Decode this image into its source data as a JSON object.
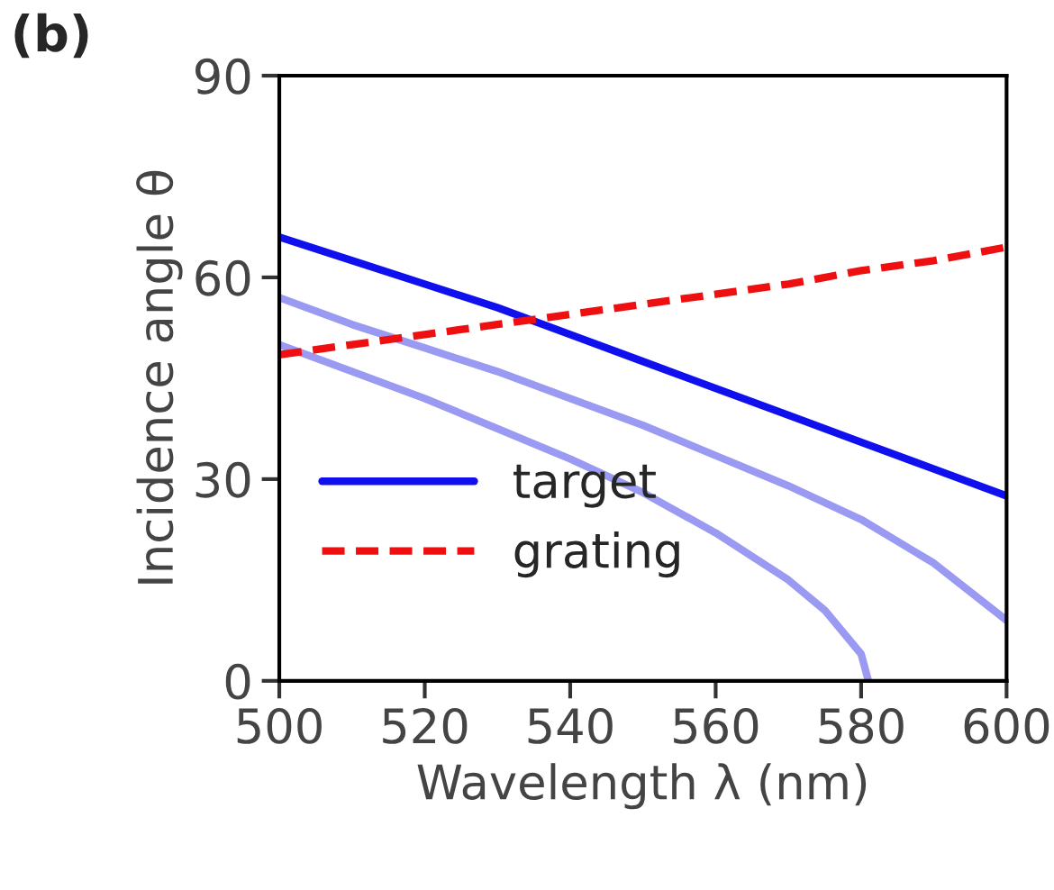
{
  "chart_data": {
    "type": "line",
    "annotations": [
      "(b)"
    ],
    "xlabel": "Wavelength λ (nm)",
    "ylabel": "Incidence angle θ",
    "xlim": [
      500,
      600
    ],
    "xticks": [
      500,
      520,
      540,
      560,
      580,
      600
    ],
    "ylim": [
      0,
      90
    ],
    "yticks": [
      0,
      30,
      60,
      90
    ],
    "grid": false,
    "legend": "bottom left",
    "series": [
      {
        "name": "target",
        "color": "#1010ee",
        "line_style": "solid",
        "x": [
          500,
          510,
          520,
          530,
          540,
          550,
          560,
          570,
          580,
          590,
          600
        ],
        "values": [
          66,
          62.5,
          59,
          55.5,
          51.5,
          47.5,
          43.5,
          39.5,
          35.5,
          31.5,
          27.5
        ]
      },
      {
        "name": "grating",
        "color": "#ee1010",
        "line_style": "dashed",
        "x": [
          500,
          510,
          520,
          530,
          540,
          550,
          560,
          570,
          580,
          590,
          600
        ],
        "values": [
          48.5,
          50,
          51.5,
          53,
          54.5,
          56,
          57.5,
          59,
          61,
          62.5,
          64.5
        ]
      },
      {
        "color": "#9a9af2",
        "line_style": "solid",
        "x": [
          500,
          510,
          520,
          530,
          540,
          550,
          560,
          570,
          580,
          590,
          600
        ],
        "values": [
          57,
          53,
          49.5,
          46,
          42,
          38,
          33.5,
          29,
          24,
          17.5,
          9
        ]
      },
      {
        "color": "#9a9af2",
        "line_style": "solid",
        "x": [
          500,
          510,
          520,
          530,
          540,
          550,
          560,
          570,
          575,
          580,
          581
        ],
        "values": [
          50,
          46,
          42,
          37.5,
          33,
          28,
          22,
          15,
          10.5,
          4,
          0
        ]
      }
    ]
  }
}
